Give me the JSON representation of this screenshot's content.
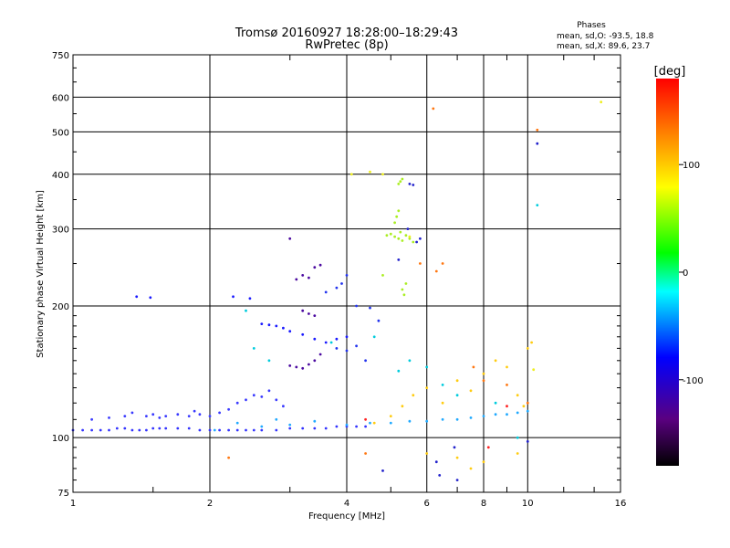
{
  "chart_data": {
    "type": "scatter",
    "title": "Tromsø 20160927 18:28:00–18:29:43",
    "subtitle": "RwPretec (8p)",
    "stats_header": "Phases",
    "stats_line1": "mean, sd,O: -93.5, 18.8",
    "stats_line2": "mean, sd,X:  89.6, 23.7",
    "xlabel": "Frequency [MHz]",
    "ylabel": "Stationary phase Virtual Height [km]",
    "x_scale": "log",
    "y_scale": "log",
    "xlim": [
      1,
      16
    ],
    "ylim": [
      75,
      750
    ],
    "x_ticks": [
      1,
      2,
      4,
      6,
      8,
      10,
      16
    ],
    "x_tick_labels": [
      "1",
      "2",
      "4",
      "6",
      "8",
      "10",
      "16"
    ],
    "y_ticks": [
      75,
      100,
      200,
      300,
      400,
      500,
      600,
      750
    ],
    "y_tick_labels": [
      "75",
      "100",
      "200",
      "300",
      "400",
      "500",
      "600",
      "750"
    ],
    "grid": true,
    "colorbar": {
      "label": "[deg]",
      "range": [
        -180,
        180
      ],
      "ticks": [
        100,
        0,
        -100
      ],
      "tick_labels": [
        "100",
        "0",
        "-100"
      ],
      "colors": [
        "#000000",
        "#5a0080",
        "#0000ff",
        "#00ffff",
        "#00ff00",
        "#ffff00",
        "#ff8000",
        "#ff0000"
      ]
    },
    "series": [
      {
        "color": "#3333ff",
        "points": [
          [
            1.0,
            104
          ],
          [
            1.05,
            104
          ],
          [
            1.1,
            104
          ],
          [
            1.15,
            104
          ],
          [
            1.2,
            104
          ],
          [
            1.25,
            105
          ],
          [
            1.3,
            105
          ],
          [
            1.35,
            104
          ],
          [
            1.4,
            104
          ],
          [
            1.45,
            104
          ],
          [
            1.5,
            105
          ],
          [
            1.55,
            105
          ],
          [
            1.6,
            105
          ],
          [
            1.7,
            105
          ],
          [
            1.8,
            105
          ],
          [
            1.9,
            104
          ],
          [
            2.0,
            104
          ],
          [
            2.1,
            104
          ],
          [
            2.2,
            104
          ],
          [
            2.3,
            104
          ],
          [
            2.4,
            104
          ],
          [
            2.5,
            104
          ],
          [
            2.6,
            104
          ],
          [
            2.8,
            104
          ],
          [
            3.0,
            105
          ],
          [
            3.2,
            105
          ],
          [
            3.4,
            105
          ],
          [
            3.6,
            105
          ],
          [
            3.8,
            106
          ],
          [
            4.0,
            106
          ],
          [
            4.2,
            106
          ],
          [
            4.4,
            106
          ]
        ]
      },
      {
        "color": "#3a3aff",
        "points": [
          [
            1.1,
            110
          ],
          [
            1.2,
            111
          ],
          [
            1.3,
            112
          ],
          [
            1.35,
            114
          ],
          [
            1.45,
            112
          ],
          [
            1.5,
            113
          ],
          [
            1.55,
            111
          ],
          [
            1.6,
            112
          ],
          [
            1.7,
            113
          ],
          [
            1.8,
            112
          ],
          [
            1.85,
            115
          ],
          [
            1.9,
            113
          ],
          [
            2.0,
            112
          ],
          [
            2.1,
            114
          ],
          [
            2.2,
            116
          ],
          [
            2.3,
            120
          ],
          [
            2.4,
            122
          ],
          [
            2.5,
            125
          ],
          [
            2.6,
            124
          ],
          [
            2.7,
            128
          ],
          [
            2.8,
            122
          ],
          [
            2.9,
            118
          ]
        ]
      },
      {
        "color": "#1a1aff",
        "points": [
          [
            1.38,
            210
          ],
          [
            1.48,
            209
          ],
          [
            2.25,
            210
          ],
          [
            2.45,
            208
          ],
          [
            2.6,
            182
          ],
          [
            2.7,
            181
          ],
          [
            2.8,
            180
          ],
          [
            2.9,
            178
          ],
          [
            3.0,
            175
          ],
          [
            3.2,
            172
          ],
          [
            3.4,
            168
          ],
          [
            3.6,
            165
          ],
          [
            3.8,
            168
          ],
          [
            4.0,
            170
          ]
        ]
      },
      {
        "color": "#4b0aa0",
        "points": [
          [
            3.0,
            146
          ],
          [
            3.1,
            145
          ],
          [
            3.2,
            144
          ],
          [
            3.3,
            147
          ],
          [
            3.4,
            150
          ],
          [
            3.5,
            155
          ],
          [
            3.2,
            195
          ],
          [
            3.3,
            192
          ],
          [
            3.4,
            190
          ],
          [
            3.1,
            230
          ],
          [
            3.2,
            235
          ],
          [
            3.3,
            232
          ],
          [
            3.4,
            245
          ],
          [
            3.5,
            248
          ],
          [
            3.0,
            285
          ]
        ]
      },
      {
        "color": "#2233ee",
        "points": [
          [
            3.6,
            215
          ],
          [
            3.8,
            220
          ],
          [
            3.9,
            225
          ],
          [
            4.0,
            235
          ],
          [
            4.2,
            200
          ],
          [
            4.5,
            198
          ],
          [
            4.7,
            185
          ],
          [
            3.8,
            160
          ],
          [
            4.0,
            158
          ],
          [
            4.2,
            162
          ],
          [
            4.4,
            150
          ]
        ]
      },
      {
        "color": "#22aaff",
        "points": [
          [
            2.05,
            104
          ],
          [
            2.3,
            108
          ],
          [
            2.6,
            106
          ],
          [
            2.8,
            110
          ],
          [
            3.0,
            107
          ],
          [
            3.4,
            109
          ],
          [
            4.0,
            107
          ],
          [
            4.5,
            108
          ],
          [
            5.0,
            108
          ],
          [
            5.5,
            109
          ],
          [
            6.0,
            109
          ],
          [
            6.5,
            110
          ],
          [
            7.0,
            110
          ],
          [
            7.5,
            111
          ],
          [
            8.0,
            112
          ],
          [
            8.5,
            113
          ],
          [
            9.0,
            113
          ],
          [
            9.5,
            114
          ],
          [
            10.0,
            115
          ]
        ]
      },
      {
        "color": "#aaee22",
        "points": [
          [
            4.9,
            290
          ],
          [
            5.0,
            292
          ],
          [
            5.1,
            288
          ],
          [
            5.2,
            285
          ],
          [
            5.3,
            282
          ],
          [
            5.1,
            310
          ],
          [
            5.15,
            320
          ],
          [
            5.2,
            330
          ],
          [
            5.25,
            295
          ],
          [
            5.4,
            290
          ],
          [
            5.5,
            285
          ],
          [
            5.6,
            280
          ],
          [
            5.4,
            225
          ],
          [
            5.3,
            218
          ],
          [
            5.35,
            212
          ],
          [
            4.8,
            235
          ],
          [
            5.25,
            385
          ],
          [
            5.3,
            390
          ],
          [
            5.2,
            380
          ]
        ]
      },
      {
        "color": "#ffcc11",
        "points": [
          [
            4.6,
            108
          ],
          [
            5.0,
            112
          ],
          [
            5.3,
            118
          ],
          [
            5.6,
            125
          ],
          [
            6.0,
            130
          ],
          [
            6.5,
            120
          ],
          [
            7.0,
            135
          ],
          [
            7.5,
            128
          ],
          [
            8.0,
            140
          ],
          [
            8.5,
            150
          ],
          [
            9.0,
            145
          ],
          [
            9.5,
            125
          ],
          [
            9.8,
            118
          ],
          [
            10.0,
            160
          ],
          [
            10.2,
            165
          ],
          [
            6.0,
            92
          ],
          [
            7.0,
            90
          ],
          [
            8.0,
            88
          ],
          [
            7.5,
            85
          ],
          [
            9.5,
            92
          ]
        ]
      },
      {
        "color": "#ff7711",
        "points": [
          [
            6.2,
            565
          ],
          [
            10.5,
            505
          ],
          [
            5.8,
            250
          ],
          [
            6.3,
            240
          ],
          [
            6.5,
            250
          ],
          [
            7.6,
            145
          ],
          [
            8.0,
            135
          ],
          [
            9.0,
            132
          ],
          [
            10.0,
            120
          ],
          [
            2.2,
            90
          ],
          [
            4.4,
            92
          ]
        ]
      },
      {
        "color": "#00ccdd",
        "points": [
          [
            2.4,
            195
          ],
          [
            2.5,
            160
          ],
          [
            2.7,
            150
          ],
          [
            3.7,
            165
          ],
          [
            4.6,
            170
          ],
          [
            5.2,
            142
          ],
          [
            5.5,
            150
          ],
          [
            6.0,
            145
          ],
          [
            6.5,
            132
          ],
          [
            7.0,
            125
          ],
          [
            10.5,
            340
          ],
          [
            8.5,
            120
          ],
          [
            9.5,
            100
          ]
        ]
      },
      {
        "color": "#2222cc",
        "points": [
          [
            5.2,
            255
          ],
          [
            5.45,
            300
          ],
          [
            5.5,
            380
          ],
          [
            5.6,
            378
          ],
          [
            5.7,
            280
          ],
          [
            5.8,
            285
          ],
          [
            10.5,
            470
          ],
          [
            6.4,
            82
          ],
          [
            7.0,
            80
          ],
          [
            6.9,
            95
          ],
          [
            6.3,
            88
          ],
          [
            4.8,
            84
          ],
          [
            10.0,
            98
          ]
        ]
      },
      {
        "color": "#eeee22",
        "points": [
          [
            14.5,
            585
          ],
          [
            4.1,
            400
          ],
          [
            4.5,
            405
          ],
          [
            4.8,
            400
          ],
          [
            5.5,
            288
          ],
          [
            10.3,
            143
          ]
        ]
      },
      {
        "color": "#ff2222",
        "points": [
          [
            4.4,
            110
          ],
          [
            9.0,
            118
          ],
          [
            8.2,
            95
          ]
        ]
      }
    ]
  }
}
